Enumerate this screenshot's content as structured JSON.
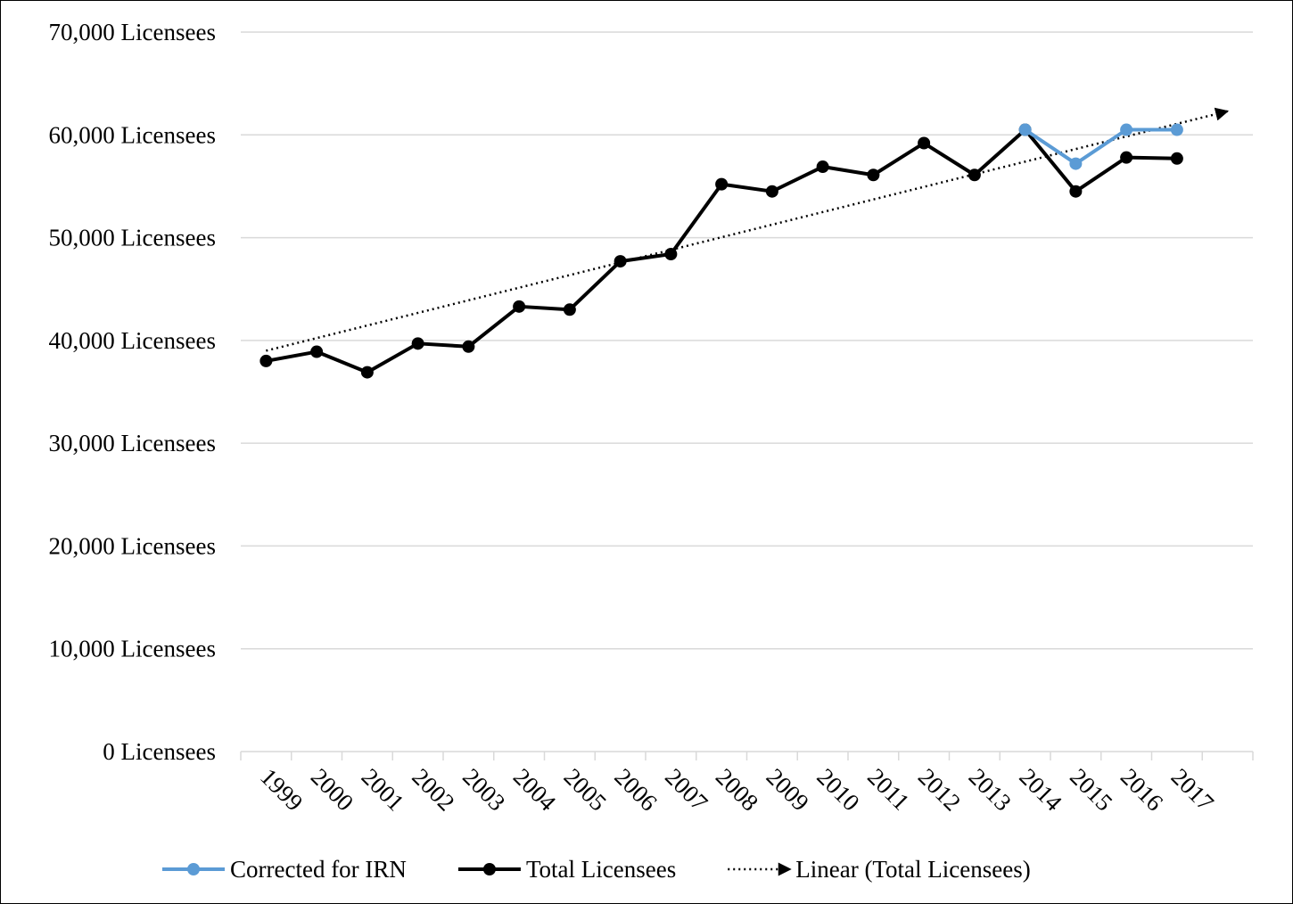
{
  "chart_data": {
    "type": "line",
    "categories": [
      "1999",
      "2000",
      "2001",
      "2002",
      "2003",
      "2004",
      "2005",
      "2006",
      "2007",
      "2008",
      "2009",
      "2010",
      "2011",
      "2012",
      "2013",
      "2014",
      "2015",
      "2016",
      "2017",
      null
    ],
    "series": [
      {
        "name": "Corrected for IRN",
        "color": "#5b9bd5",
        "values": [
          null,
          null,
          null,
          null,
          null,
          null,
          null,
          null,
          null,
          null,
          null,
          null,
          null,
          null,
          null,
          60500,
          57200,
          60500,
          60500,
          null
        ]
      },
      {
        "name": "Total Licensees",
        "color": "#000000",
        "values": [
          38000,
          38900,
          36900,
          39700,
          39400,
          43300,
          43000,
          47700,
          48400,
          55200,
          54500,
          56900,
          56100,
          59200,
          56100,
          60500,
          54500,
          57800,
          57700,
          null
        ]
      }
    ],
    "trendline": {
      "name": "Linear (Total Licensees)",
      "color": "#000000",
      "start": 39000,
      "end": 62300
    },
    "ylim": [
      0,
      70000
    ],
    "yticks": [
      {
        "value": 0,
        "label": "0 Licensees"
      },
      {
        "value": 10000,
        "label": "10,000 Licensees"
      },
      {
        "value": 20000,
        "label": "20,000 Licensees"
      },
      {
        "value": 30000,
        "label": "30,000 Licensees"
      },
      {
        "value": 40000,
        "label": "40,000 Licensees"
      },
      {
        "value": 50000,
        "label": "50,000 Licensees"
      },
      {
        "value": 60000,
        "label": "60,000 Licensees"
      },
      {
        "value": 70000,
        "label": "70,000 Licensees"
      }
    ],
    "grid": true,
    "legend": "bottom"
  }
}
